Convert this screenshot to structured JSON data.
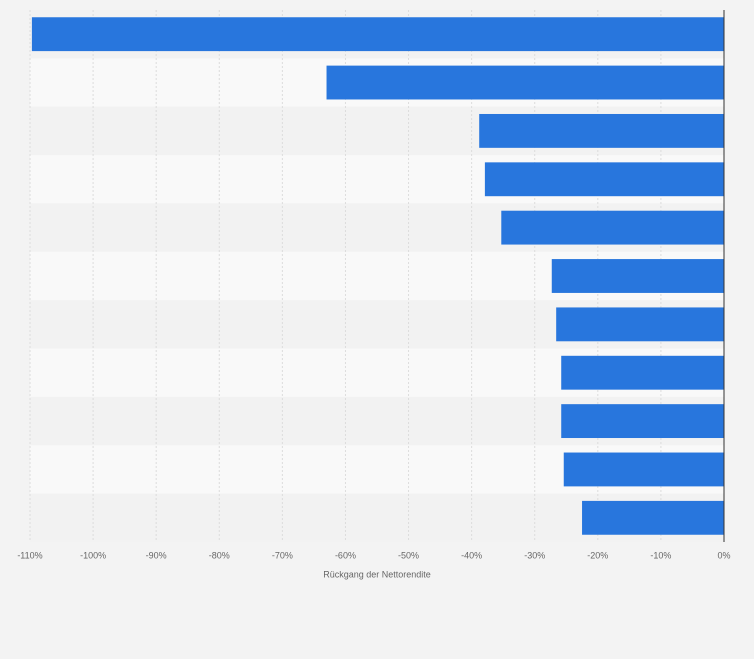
{
  "chart_data": {
    "type": "bar",
    "orientation": "horizontal",
    "categories": [
      null,
      null,
      null,
      null,
      null,
      null,
      null,
      null,
      null,
      null,
      null
    ],
    "values": [
      -109.7,
      -63,
      -38.8,
      -37.9,
      -35.3,
      -27.3,
      -26.6,
      -25.8,
      -25.8,
      -25.4,
      -22.5
    ],
    "color": "#2876dd",
    "x_label": "Rückgang der Nettorendite",
    "xlim": [
      -110,
      0
    ],
    "xticks": [
      {
        "value": -110,
        "label": "-110%"
      },
      {
        "value": -100,
        "label": "-100%"
      },
      {
        "value": -90,
        "label": "-90%"
      },
      {
        "value": -80,
        "label": "-80%"
      },
      {
        "value": -70,
        "label": "-70%"
      },
      {
        "value": -60,
        "label": "-60%"
      },
      {
        "value": -50,
        "label": "-50%"
      },
      {
        "value": -40,
        "label": "-40%"
      },
      {
        "value": -30,
        "label": "-30%"
      },
      {
        "value": -20,
        "label": "-20%"
      },
      {
        "value": -10,
        "label": "-10%"
      },
      {
        "value": 0,
        "label": "0%"
      }
    ],
    "grid": true
  }
}
